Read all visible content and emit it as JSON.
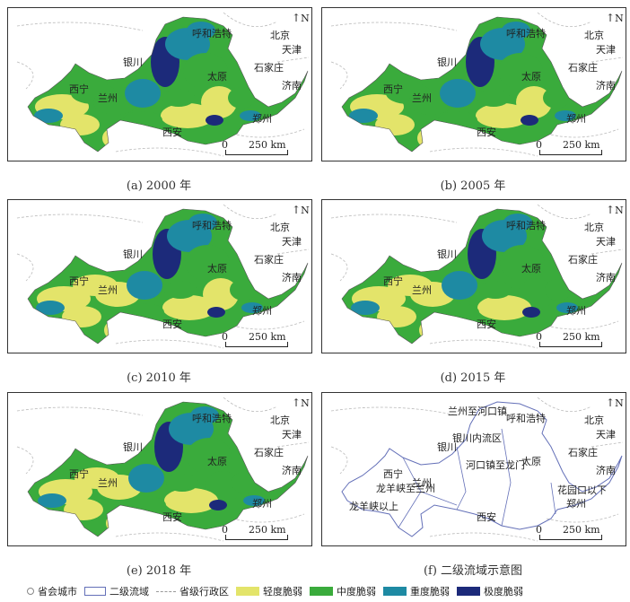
{
  "panels": [
    {
      "caption": "(a) 2000 年"
    },
    {
      "caption": "(b) 2005 年"
    },
    {
      "caption": "(c) 2010 年"
    },
    {
      "caption": "(d) 2015 年"
    },
    {
      "caption": "(e) 2018 年"
    },
    {
      "caption": "(f) 二级流域示意图"
    }
  ],
  "cities": {
    "huhehaote": "呼和浩特",
    "beijing": "北京",
    "tianjin": "天津",
    "yinchuan": "银川",
    "taiyuan": "太原",
    "shijiazhuang": "石家庄",
    "xining": "西宁",
    "lanzhou": "兰州",
    "jinan": "济南",
    "zhengzhou": "郑州",
    "xian": "西安"
  },
  "basins": {
    "lanzhou_hekou": "兰州至河口镇",
    "yinchuan_neiliu": "银川内流区",
    "hekou_longmen": "河口镇至龙门",
    "longyangxia_lanzhou": "龙羊峡至兰州",
    "above_longyangxia": "龙羊峡以上",
    "below_huayuankou": "花园口以下"
  },
  "north_label": "N",
  "scale_label": "250 km",
  "scale_zero": "0",
  "legend": {
    "capital": "省会城市",
    "basin": "二级流域",
    "province": "省级行政区",
    "light": "轻度脆弱",
    "medium": "中度脆弱",
    "heavy": "重度脆弱",
    "extreme": "极度脆弱"
  },
  "colors": {
    "light": "#e3e46a",
    "medium": "#3aab3c",
    "heavy": "#1e8aa3",
    "extreme": "#1c2a7a",
    "basin_line": "#6470b8"
  }
}
